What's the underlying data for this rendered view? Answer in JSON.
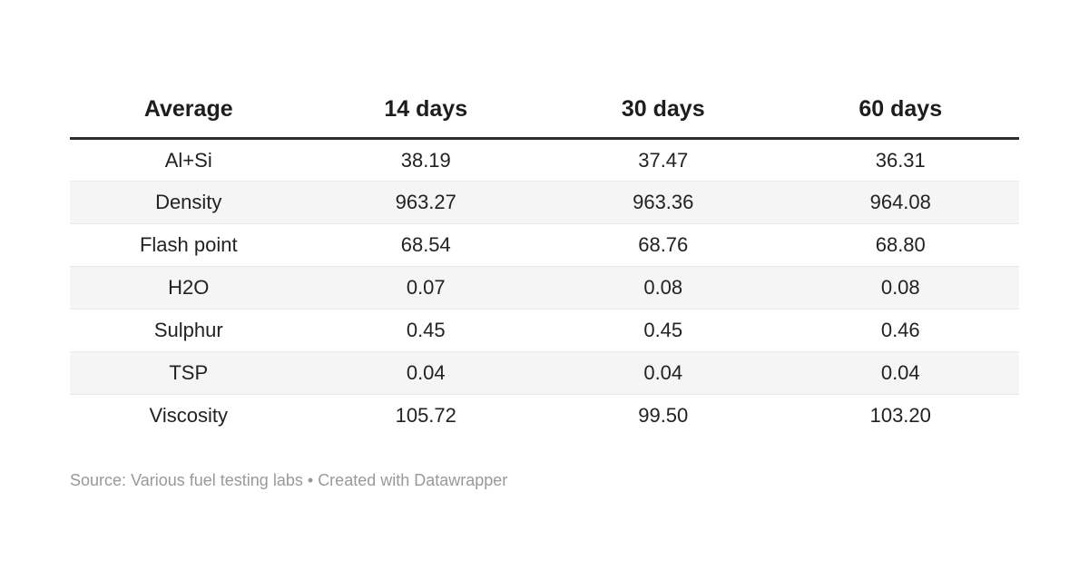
{
  "chart_data": {
    "type": "table",
    "columns": [
      "Average",
      "14 days",
      "30 days",
      "60 days"
    ],
    "rows": [
      {
        "label": "Al+Si",
        "values": [
          "38.19",
          "37.47",
          "36.31"
        ]
      },
      {
        "label": "Density",
        "values": [
          "963.27",
          "963.36",
          "964.08"
        ]
      },
      {
        "label": "Flash point",
        "values": [
          "68.54",
          "68.76",
          "68.80"
        ]
      },
      {
        "label": "H2O",
        "values": [
          "0.07",
          "0.08",
          "0.08"
        ]
      },
      {
        "label": "Sulphur",
        "values": [
          "0.45",
          "0.45",
          "0.46"
        ]
      },
      {
        "label": "TSP",
        "values": [
          "0.04",
          "0.04",
          "0.04"
        ]
      },
      {
        "label": "Viscosity",
        "values": [
          "105.72",
          "99.50",
          "103.20"
        ]
      }
    ],
    "layout": {
      "alignment": "center",
      "zebra_striping": true,
      "striped_rows": "even"
    }
  },
  "footer": {
    "source_label": "Source:",
    "source_value": "Various fuel testing labs",
    "separator": "•",
    "attribution": "Created with Datawrapper"
  },
  "colors": {
    "background": "#ffffff",
    "header_text": "#1d1d1d",
    "header_rule": "#2e2e2e",
    "body_text": "#222222",
    "row_stripe": "#f5f5f5",
    "row_divider": "#ebebeb",
    "footer_text": "#999999"
  }
}
